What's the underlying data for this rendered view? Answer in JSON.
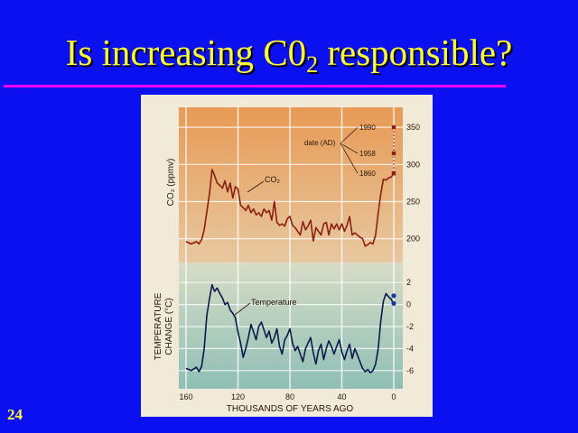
{
  "slide": {
    "title_main": "Is increasing C0",
    "title_sub": "2",
    "title_rest": " responsible?",
    "slide_number": "24",
    "colors": {
      "background": "#0a10f0",
      "title": "#ffff33",
      "rule": "#ff00ff"
    }
  },
  "chart_data": {
    "type": "line",
    "xlabel": "THOUSANDS OF YEARS AGO",
    "x_ticks": [
      160,
      120,
      80,
      40,
      0
    ],
    "x_range": [
      160,
      0
    ],
    "grid": true,
    "panels": [
      {
        "name": "co2",
        "ylabel": "CO₂ (ppmv)",
        "y_ticks": [
          200,
          250,
          300,
          350
        ],
        "y_range": [
          185,
          355
        ],
        "series": [
          {
            "name": "CO₂",
            "color": "#8a1f12",
            "x": [
              160,
              156,
              152,
              150,
              148,
              146,
              144,
              142,
              140,
              138,
              136,
              134,
              132,
              130,
              128,
              126,
              124,
              122,
              120,
              118,
              116,
              114,
              112,
              110,
              108,
              106,
              104,
              102,
              100,
              98,
              96,
              94,
              92,
              90,
              88,
              86,
              84,
              82,
              80,
              78,
              76,
              74,
              72,
              70,
              68,
              66,
              64,
              62,
              60,
              58,
              56,
              54,
              52,
              50,
              48,
              46,
              44,
              42,
              40,
              38,
              36,
              34,
              32,
              30,
              28,
              26,
              24,
              22,
              20,
              18,
              16,
              14,
              12,
              10,
              8,
              6,
              4,
              2,
              0
            ],
            "values": [
              196,
              193,
              196,
              193,
              199,
              212,
              236,
              260,
              293,
              285,
              275,
              272,
              268,
              278,
              263,
              275,
              255,
              270,
              267,
              245,
              242,
              238,
              245,
              235,
              240,
              232,
              235,
              230,
              240,
              235,
              238,
              225,
              250,
              222,
              218,
              220,
              217,
              227,
              230,
              218,
              215,
              210,
              205,
              223,
              212,
              217,
              225,
              197,
              215,
              210,
              205,
              220,
              222,
              205,
              220,
              213,
              220,
              212,
              220,
              210,
              218,
              230,
              205,
              208,
              205,
              202,
              200,
              190,
              192,
              195,
              193,
              205,
              235,
              260,
              280,
              279,
              282,
              283,
              288
            ]
          }
        ],
        "annotations": {
          "label": "date (AD)",
          "points": [
            {
              "year": "1990",
              "value": 350
            },
            {
              "year": "1958",
              "value": 315
            },
            {
              "year": "1860",
              "value": 288
            }
          ]
        }
      },
      {
        "name": "temperature",
        "ylabel": "TEMPERATURE CHANGE (°C)",
        "y_ticks": [
          2,
          0,
          -2,
          -4,
          -6
        ],
        "y_range": [
          -7,
          3
        ],
        "series": [
          {
            "name": "Temperature",
            "color": "#0a1a4a",
            "x": [
              160,
              156,
              152,
              150,
              148,
              146,
              144,
              142,
              140,
              138,
              136,
              134,
              132,
              130,
              128,
              126,
              124,
              122,
              120,
              118,
              116,
              114,
              112,
              110,
              108,
              106,
              104,
              102,
              100,
              98,
              96,
              94,
              92,
              90,
              88,
              86,
              84,
              82,
              80,
              78,
              76,
              74,
              72,
              70,
              68,
              66,
              64,
              62,
              60,
              58,
              56,
              54,
              52,
              50,
              48,
              46,
              44,
              42,
              40,
              38,
              36,
              34,
              32,
              30,
              28,
              26,
              24,
              22,
              20,
              18,
              16,
              14,
              12,
              10,
              8,
              6,
              4,
              2,
              0
            ],
            "values": [
              -5.8,
              -6.0,
              -5.7,
              -6.1,
              -5.6,
              -4.0,
              -1.0,
              0.5,
              1.8,
              1.2,
              1.5,
              1.0,
              0.6,
              0.0,
              0.2,
              -0.5,
              -0.8,
              -1.2,
              -2.5,
              -3.5,
              -4.8,
              -4.0,
              -3.0,
              -1.8,
              -2.5,
              -3.2,
              -2.0,
              -1.6,
              -2.3,
              -3.0,
              -2.4,
              -3.5,
              -3.0,
              -2.2,
              -3.8,
              -4.5,
              -3.2,
              -2.8,
              -2.2,
              -3.5,
              -4.2,
              -3.8,
              -4.5,
              -5.2,
              -4.0,
              -3.5,
              -3.0,
              -4.4,
              -5.4,
              -4.2,
              -3.6,
              -5.0,
              -4.0,
              -3.3,
              -3.8,
              -4.5,
              -3.8,
              -3.2,
              -4.3,
              -5.0,
              -4.2,
              -3.6,
              -4.9,
              -4.0,
              -4.6,
              -5.2,
              -5.8,
              -6.1,
              -5.9,
              -6.2,
              -6.0,
              -5.4,
              -4.0,
              -1.5,
              0.3,
              1.0,
              0.7,
              0.5,
              0.0
            ],
            "endpoints": [
              0.8,
              0.1
            ]
          }
        ]
      }
    ]
  }
}
